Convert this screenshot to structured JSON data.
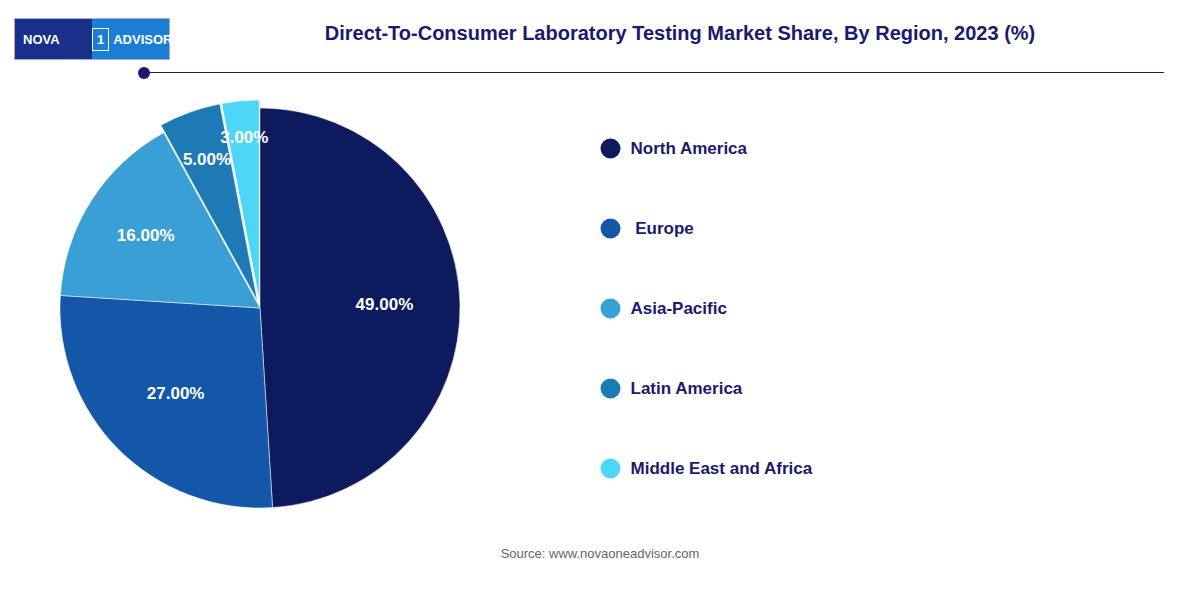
{
  "chart_data": {
    "type": "pie",
    "title": "Direct-To-Consumer Laboratory Testing Market Share, By Region, 2023 (%)",
    "categories": [
      "North America",
      " Europe",
      "Asia-Pacific",
      "Latin America",
      "Middle East and Africa"
    ],
    "values": [
      49.0,
      27.0,
      16.0,
      5.0,
      3.0
    ],
    "value_labels": [
      "49.00%",
      "27.00%",
      "16.00%",
      "5.00%",
      "3.00%"
    ],
    "colors": [
      "#0d1b5e",
      "#1457a8",
      "#3a9fd4",
      "#1e7ab5",
      "#4dd6f5"
    ],
    "data_labels": true,
    "legend": "right",
    "annotations": [
      "NOVA",
      "1",
      "ADVISOR"
    ],
    "caption": "Source: www.novaoneadvisor.com"
  }
}
